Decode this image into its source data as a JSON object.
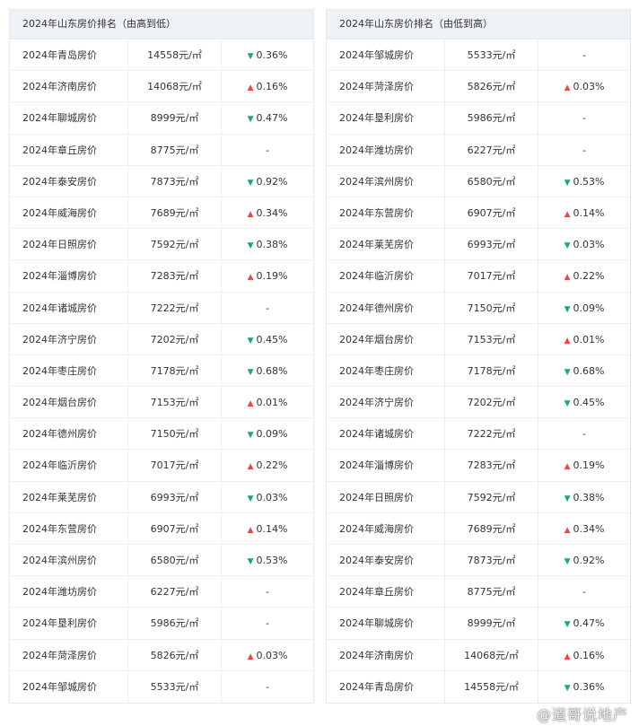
{
  "tables": [
    {
      "title": "2024年山东房价排名（由高到低）",
      "rows": [
        {
          "city": "2024年青岛房价",
          "price": "14558元/㎡",
          "dir": "down",
          "change": "0.36%"
        },
        {
          "city": "2024年济南房价",
          "price": "14068元/㎡",
          "dir": "up",
          "change": "0.16%"
        },
        {
          "city": "2024年聊城房价",
          "price": "8999元/㎡",
          "dir": "down",
          "change": "0.47%"
        },
        {
          "city": "2024年章丘房价",
          "price": "8775元/㎡",
          "dir": "none",
          "change": "-"
        },
        {
          "city": "2024年泰安房价",
          "price": "7873元/㎡",
          "dir": "down",
          "change": "0.92%"
        },
        {
          "city": "2024年威海房价",
          "price": "7689元/㎡",
          "dir": "up",
          "change": "0.34%"
        },
        {
          "city": "2024年日照房价",
          "price": "7592元/㎡",
          "dir": "down",
          "change": "0.38%"
        },
        {
          "city": "2024年淄博房价",
          "price": "7283元/㎡",
          "dir": "up",
          "change": "0.19%"
        },
        {
          "city": "2024年诸城房价",
          "price": "7222元/㎡",
          "dir": "none",
          "change": "-"
        },
        {
          "city": "2024年济宁房价",
          "price": "7202元/㎡",
          "dir": "down",
          "change": "0.45%"
        },
        {
          "city": "2024年枣庄房价",
          "price": "7178元/㎡",
          "dir": "down",
          "change": "0.68%"
        },
        {
          "city": "2024年烟台房价",
          "price": "7153元/㎡",
          "dir": "up",
          "change": "0.01%"
        },
        {
          "city": "2024年德州房价",
          "price": "7150元/㎡",
          "dir": "down",
          "change": "0.09%"
        },
        {
          "city": "2024年临沂房价",
          "price": "7017元/㎡",
          "dir": "up",
          "change": "0.22%"
        },
        {
          "city": "2024年莱芜房价",
          "price": "6993元/㎡",
          "dir": "down",
          "change": "0.03%"
        },
        {
          "city": "2024年东营房价",
          "price": "6907元/㎡",
          "dir": "up",
          "change": "0.14%"
        },
        {
          "city": "2024年滨州房价",
          "price": "6580元/㎡",
          "dir": "down",
          "change": "0.53%"
        },
        {
          "city": "2024年潍坊房价",
          "price": "6227元/㎡",
          "dir": "none",
          "change": "-"
        },
        {
          "city": "2024年垦利房价",
          "price": "5986元/㎡",
          "dir": "none",
          "change": "-"
        },
        {
          "city": "2024年菏泽房价",
          "price": "5826元/㎡",
          "dir": "up",
          "change": "0.03%"
        },
        {
          "city": "2024年邹城房价",
          "price": "5533元/㎡",
          "dir": "none",
          "change": "-"
        }
      ]
    },
    {
      "title": "2024年山东房价排名（由低到高）",
      "rows": [
        {
          "city": "2024年邹城房价",
          "price": "5533元/㎡",
          "dir": "none",
          "change": "-"
        },
        {
          "city": "2024年菏泽房价",
          "price": "5826元/㎡",
          "dir": "up",
          "change": "0.03%"
        },
        {
          "city": "2024年垦利房价",
          "price": "5986元/㎡",
          "dir": "none",
          "change": "-"
        },
        {
          "city": "2024年潍坊房价",
          "price": "6227元/㎡",
          "dir": "none",
          "change": "-"
        },
        {
          "city": "2024年滨州房价",
          "price": "6580元/㎡",
          "dir": "down",
          "change": "0.53%"
        },
        {
          "city": "2024年东营房价",
          "price": "6907元/㎡",
          "dir": "up",
          "change": "0.14%"
        },
        {
          "city": "2024年莱芜房价",
          "price": "6993元/㎡",
          "dir": "down",
          "change": "0.03%"
        },
        {
          "city": "2024年临沂房价",
          "price": "7017元/㎡",
          "dir": "up",
          "change": "0.22%"
        },
        {
          "city": "2024年德州房价",
          "price": "7150元/㎡",
          "dir": "down",
          "change": "0.09%"
        },
        {
          "city": "2024年烟台房价",
          "price": "7153元/㎡",
          "dir": "up",
          "change": "0.01%"
        },
        {
          "city": "2024年枣庄房价",
          "price": "7178元/㎡",
          "dir": "down",
          "change": "0.68%"
        },
        {
          "city": "2024年济宁房价",
          "price": "7202元/㎡",
          "dir": "down",
          "change": "0.45%"
        },
        {
          "city": "2024年诸城房价",
          "price": "7222元/㎡",
          "dir": "none",
          "change": "-"
        },
        {
          "city": "2024年淄博房价",
          "price": "7283元/㎡",
          "dir": "up",
          "change": "0.19%"
        },
        {
          "city": "2024年日照房价",
          "price": "7592元/㎡",
          "dir": "down",
          "change": "0.38%"
        },
        {
          "city": "2024年威海房价",
          "price": "7689元/㎡",
          "dir": "up",
          "change": "0.34%"
        },
        {
          "city": "2024年泰安房价",
          "price": "7873元/㎡",
          "dir": "down",
          "change": "0.92%"
        },
        {
          "city": "2024年章丘房价",
          "price": "8775元/㎡",
          "dir": "none",
          "change": "-"
        },
        {
          "city": "2024年聊城房价",
          "price": "8999元/㎡",
          "dir": "down",
          "change": "0.47%"
        },
        {
          "city": "2024年济南房价",
          "price": "14068元/㎡",
          "dir": "up",
          "change": "0.16%"
        },
        {
          "city": "2024年青岛房价",
          "price": "14558元/㎡",
          "dir": "down",
          "change": "0.36%"
        }
      ]
    }
  ],
  "colors": {
    "up": "#e5484d",
    "down": "#1aa67a",
    "header_bg": "#eef2f6"
  },
  "watermark": "@道哥说地产"
}
